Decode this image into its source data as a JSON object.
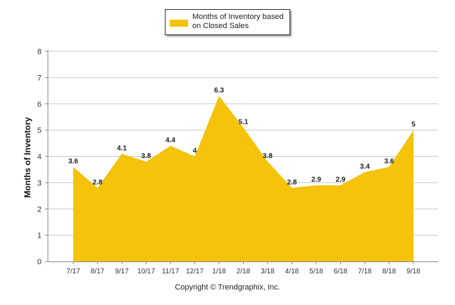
{
  "chart_data": {
    "type": "area",
    "categories": [
      "7/17",
      "8/17",
      "9/17",
      "10/17",
      "11/17",
      "12/17",
      "1/18",
      "2/18",
      "3/18",
      "4/18",
      "5/18",
      "6/18",
      "7/18",
      "8/18",
      "9/18"
    ],
    "series": [
      {
        "name": "Months of Inventory based on Closed Sales",
        "values": [
          3.6,
          2.8,
          4.1,
          3.8,
          4.4,
          4,
          6.3,
          5.1,
          3.8,
          2.8,
          2.9,
          2.9,
          3.4,
          3.6,
          5
        ],
        "labels": [
          "3.6",
          "2.8",
          "4.1",
          "3.8",
          "4.4",
          "4",
          "6.3",
          "5.1",
          "3.8",
          "2.8",
          "2.9",
          "2.9",
          "3.4",
          "3.6",
          "5"
        ],
        "color": "#F5C20C"
      }
    ],
    "ylabel": "Months of Inventory",
    "ylim": [
      0,
      8
    ],
    "yticks": [
      0,
      1,
      2,
      3,
      4,
      5,
      6,
      7,
      8
    ],
    "grid": true,
    "legend_position": "top-center"
  },
  "legend": {
    "label_line1": "Months of Inventory based",
    "label_line2": "on Closed Sales"
  },
  "footer": {
    "copyright": "Copyright © Trendgraphix, Inc."
  }
}
